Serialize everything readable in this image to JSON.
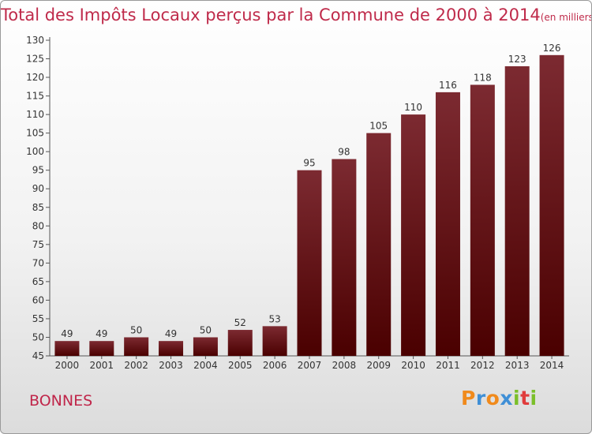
{
  "chart_data": {
    "type": "bar",
    "title": "Total des Impôts Locaux perçus par la Commune de 2000 à 2014",
    "unit_note": "(en milliers d'€)",
    "categories": [
      "2000",
      "2001",
      "2002",
      "2003",
      "2004",
      "2005",
      "2006",
      "2007",
      "2008",
      "2009",
      "2010",
      "2011",
      "2012",
      "2013",
      "2014"
    ],
    "values": [
      49,
      49,
      50,
      49,
      50,
      52,
      53,
      95,
      98,
      105,
      110,
      116,
      118,
      123,
      126
    ],
    "ylim": [
      45,
      130
    ],
    "yticks": [
      45,
      50,
      55,
      60,
      65,
      70,
      75,
      80,
      85,
      90,
      95,
      100,
      105,
      110,
      115,
      120,
      125,
      130
    ],
    "xlabel": "",
    "ylabel": "",
    "grid": false,
    "bar_color": "#7a1a22",
    "data_labels": true
  },
  "footer": {
    "commune": "BONNES",
    "logo_letters": [
      "P",
      "r",
      "o",
      "x",
      "i",
      "t",
      "i"
    ],
    "logo_colors": [
      "#f08a1c",
      "#3f8fd6",
      "#f08a1c",
      "#3f8fd6",
      "#7bbf2a",
      "#e03c3c",
      "#7bbf2a"
    ]
  },
  "colors": {
    "title": "#bf2a4a",
    "commune": "#c0264a",
    "axis_text": "#333333"
  }
}
